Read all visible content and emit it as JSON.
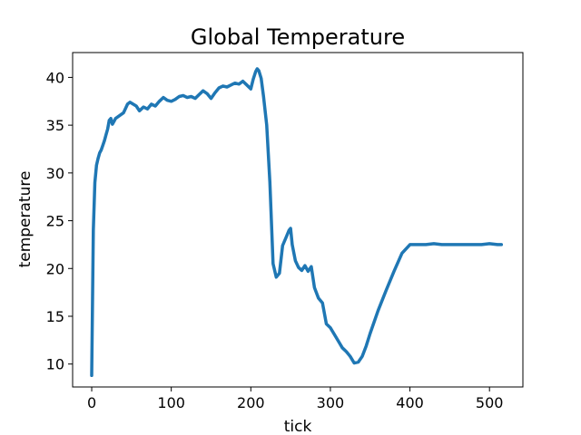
{
  "chart_data": {
    "type": "line",
    "title": "Global Temperature",
    "xlabel": "tick",
    "ylabel": "temperature",
    "xlim": [
      -24,
      542
    ],
    "ylim": [
      7.6,
      42.6
    ],
    "xticks": [
      0,
      100,
      200,
      300,
      400,
      500
    ],
    "yticks": [
      10,
      15,
      20,
      25,
      30,
      35,
      40
    ],
    "grid": false,
    "legend": "none",
    "series": [
      {
        "color": "#1f77b4",
        "x": [
          0,
          2,
          4,
          6,
          8,
          10,
          12,
          14,
          16,
          18,
          20,
          22,
          24,
          26,
          28,
          30,
          35,
          40,
          45,
          48,
          52,
          56,
          60,
          65,
          70,
          75,
          80,
          85,
          90,
          95,
          100,
          105,
          110,
          115,
          120,
          125,
          130,
          135,
          140,
          145,
          150,
          155,
          160,
          165,
          170,
          175,
          180,
          185,
          190,
          195,
          200,
          203,
          206,
          208,
          210,
          213,
          216,
          220,
          224,
          228,
          232,
          236,
          240,
          244,
          248,
          250,
          252,
          256,
          260,
          264,
          268,
          272,
          276,
          280,
          285,
          290,
          295,
          300,
          305,
          310,
          315,
          320,
          325,
          330,
          335,
          340,
          345,
          350,
          360,
          370,
          380,
          390,
          400,
          410,
          420,
          430,
          440,
          450,
          460,
          470,
          480,
          490,
          500,
          510,
          515
        ],
        "y": [
          8.8,
          24.0,
          29.0,
          30.8,
          31.5,
          32.1,
          32.4,
          32.9,
          33.4,
          34.0,
          34.6,
          35.5,
          35.7,
          35.1,
          35.4,
          35.7,
          36.0,
          36.3,
          37.2,
          37.4,
          37.2,
          37.0,
          36.5,
          36.9,
          36.7,
          37.2,
          37.0,
          37.5,
          37.9,
          37.6,
          37.5,
          37.7,
          38.0,
          38.1,
          37.9,
          38.0,
          37.8,
          38.2,
          38.6,
          38.3,
          37.8,
          38.4,
          38.9,
          39.1,
          39.0,
          39.2,
          39.4,
          39.3,
          39.6,
          39.2,
          38.8,
          39.8,
          40.6,
          40.9,
          40.7,
          39.9,
          38.0,
          35.0,
          29.0,
          20.5,
          19.1,
          19.5,
          22.4,
          23.2,
          24.0,
          24.2,
          22.5,
          20.8,
          20.1,
          19.8,
          20.3,
          19.7,
          20.2,
          18.0,
          16.9,
          16.4,
          14.2,
          13.8,
          13.1,
          12.4,
          11.7,
          11.3,
          10.8,
          10.1,
          10.2,
          10.8,
          11.9,
          13.2,
          15.6,
          17.7,
          19.7,
          21.6,
          22.5,
          22.5,
          22.5,
          22.6,
          22.5,
          22.5,
          22.5,
          22.5,
          22.5,
          22.5,
          22.6,
          22.5,
          22.5
        ]
      }
    ]
  }
}
